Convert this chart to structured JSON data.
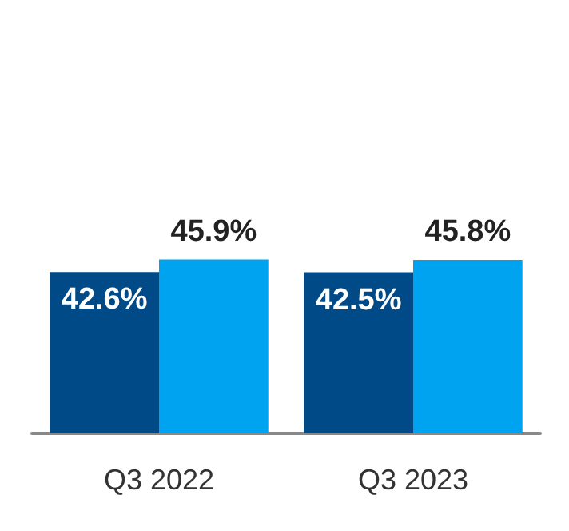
{
  "chart_data": {
    "type": "bar",
    "categories": [
      "Q3 2022",
      "Q3 2023"
    ],
    "series": [
      {
        "color": "#004a87",
        "values": [
          42.6,
          42.5
        ],
        "value_labels": [
          "42.6%",
          "42.5%"
        ]
      },
      {
        "color": "#00a3f0",
        "values": [
          45.9,
          45.8
        ],
        "value_labels": [
          "45.9%",
          "45.8%"
        ]
      }
    ],
    "stacked": false
  }
}
